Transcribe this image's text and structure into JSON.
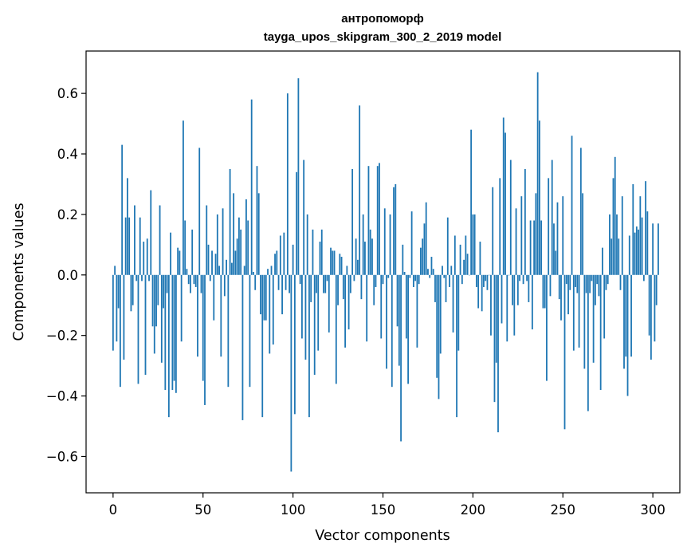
{
  "chart_data": {
    "type": "bar",
    "title": "антропоморф",
    "subtitle": "tayga_upos_skipgram_300_2_2019 model",
    "xlabel": "Vector components",
    "ylabel": "Components values",
    "xlim": [
      -15,
      315
    ],
    "ylim": [
      -0.72,
      0.74
    ],
    "xticks": [
      0,
      50,
      100,
      150,
      200,
      250,
      300
    ],
    "xtick_labels": [
      "0",
      "50",
      "100",
      "150",
      "200",
      "250",
      "300"
    ],
    "yticks": [
      -0.6,
      -0.4,
      -0.2,
      0.0,
      0.2,
      0.4,
      0.6
    ],
    "ytick_labels": [
      "−0.6",
      "−0.4",
      "−0.2",
      "0.0",
      "0.2",
      "0.4",
      "0.6"
    ],
    "grid": false,
    "bar_color": "#1f77b4",
    "x_start": 0,
    "values": [
      -0.25,
      0.03,
      -0.22,
      -0.11,
      -0.37,
      0.43,
      -0.28,
      0.19,
      0.32,
      0.19,
      -0.12,
      -0.1,
      0.23,
      -0.02,
      -0.36,
      0.19,
      -0.02,
      0.11,
      -0.33,
      0.12,
      -0.02,
      0.28,
      -0.17,
      -0.26,
      -0.17,
      -0.1,
      0.23,
      -0.29,
      -0.11,
      -0.38,
      -0.06,
      -0.47,
      0.14,
      -0.38,
      -0.35,
      -0.39,
      0.09,
      0.08,
      -0.22,
      0.51,
      0.18,
      0.02,
      -0.03,
      -0.06,
      0.15,
      -0.03,
      -0.04,
      -0.27,
      0.42,
      -0.06,
      -0.35,
      -0.43,
      0.23,
      0.1,
      -0.02,
      0.08,
      -0.15,
      0.07,
      0.2,
      0.03,
      -0.27,
      0.22,
      -0.07,
      0.05,
      -0.37,
      0.35,
      0.04,
      0.27,
      0.08,
      0.12,
      0.19,
      0.15,
      -0.48,
      0.03,
      0.25,
      0.18,
      -0.37,
      0.58,
      0.01,
      -0.05,
      0.36,
      0.27,
      -0.13,
      -0.47,
      -0.15,
      -0.15,
      0.02,
      -0.26,
      0.03,
      -0.23,
      0.07,
      0.08,
      -0.05,
      0.13,
      -0.13,
      0.14,
      -0.05,
      0.6,
      -0.06,
      -0.65,
      0.1,
      -0.46,
      0.34,
      0.65,
      -0.03,
      -0.21,
      0.38,
      -0.28,
      0.2,
      -0.47,
      -0.09,
      0.15,
      -0.33,
      -0.06,
      -0.25,
      0.11,
      0.15,
      -0.06,
      -0.06,
      -0.02,
      -0.19,
      0.09,
      0.08,
      0.08,
      -0.36,
      -0.1,
      0.07,
      0.06,
      -0.08,
      -0.24,
      0.03,
      -0.18,
      -0.06,
      0.35,
      -0.02,
      0.12,
      0.05,
      0.56,
      -0.08,
      0.2,
      0.11,
      -0.22,
      0.36,
      0.15,
      0.12,
      -0.1,
      -0.04,
      0.36,
      0.37,
      -0.21,
      -0.03,
      0.22,
      -0.31,
      -0.01,
      0.2,
      -0.37,
      0.29,
      0.3,
      -0.17,
      -0.3,
      -0.55,
      0.1,
      0.01,
      -0.21,
      -0.36,
      -0.01,
      0.21,
      -0.04,
      -0.02,
      -0.24,
      -0.03,
      0.09,
      0.12,
      0.17,
      0.24,
      0.02,
      -0.01,
      0.06,
      0.02,
      -0.09,
      -0.34,
      -0.41,
      -0.26,
      0.03,
      -0.01,
      -0.09,
      0.19,
      -0.04,
      0.03,
      -0.19,
      0.13,
      -0.47,
      -0.25,
      0.1,
      -0.03,
      0.05,
      0.13,
      0.07,
      0.0,
      0.48,
      0.2,
      0.2,
      -0.04,
      -0.11,
      0.11,
      -0.12,
      -0.04,
      -0.02,
      -0.05,
      0.0,
      -0.2,
      0.29,
      -0.42,
      -0.29,
      -0.52,
      0.32,
      -0.16,
      0.52,
      0.47,
      -0.22,
      0.0,
      0.38,
      -0.1,
      -0.2,
      0.22,
      -0.1,
      -0.02,
      0.26,
      -0.03,
      0.35,
      -0.02,
      -0.09,
      0.18,
      -0.18,
      0.18,
      0.27,
      0.67,
      0.51,
      0.18,
      -0.11,
      -0.11,
      -0.35,
      0.32,
      -0.07,
      0.38,
      0.17,
      0.08,
      0.24,
      -0.08,
      -0.15,
      0.26,
      -0.51,
      -0.03,
      -0.13,
      -0.05,
      0.46,
      -0.25,
      -0.04,
      -0.06,
      -0.24,
      0.42,
      0.27,
      -0.31,
      -0.06,
      -0.45,
      -0.06,
      -0.02,
      -0.29,
      -0.1,
      -0.03,
      -0.07,
      -0.38,
      0.09,
      -0.21,
      -0.05,
      -0.03,
      0.2,
      0.12,
      0.32,
      0.39,
      0.2,
      0.12,
      -0.05,
      0.26,
      -0.31,
      -0.27,
      -0.4,
      0.13,
      -0.27,
      0.3,
      0.14,
      0.16,
      0.15,
      0.26,
      0.19,
      -0.02,
      0.31,
      0.21,
      -0.2,
      -0.28,
      0.17,
      -0.22,
      -0.1,
      0.17
    ]
  }
}
